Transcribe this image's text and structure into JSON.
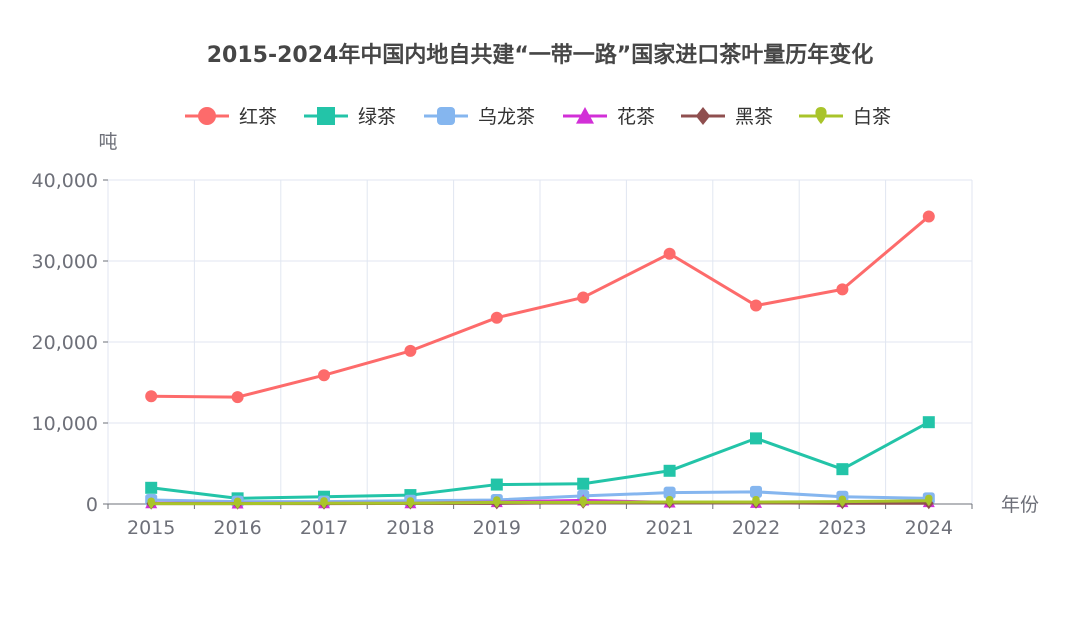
{
  "chart_data": {
    "type": "line",
    "title": "2015-2024年中国内地自共建“一带一路”国家进口茶叶量历年变化",
    "xlabel": "年份",
    "ylabel": "吨",
    "categories": [
      "2015",
      "2016",
      "2017",
      "2018",
      "2019",
      "2020",
      "2021",
      "2022",
      "2023",
      "2024"
    ],
    "ylim": [
      0,
      40000
    ],
    "yticks": [
      0,
      10000,
      20000,
      30000,
      40000
    ],
    "ytick_labels": [
      "0",
      "10,000",
      "20,000",
      "30,000",
      "40,000"
    ],
    "grid": true,
    "legend_position": "top",
    "series": [
      {
        "name": "红茶",
        "color": "#fd6b6b",
        "marker": "circle",
        "values": [
          13300,
          13200,
          15900,
          18900,
          23000,
          25500,
          30900,
          24500,
          26500,
          35500
        ]
      },
      {
        "name": "绿茶",
        "color": "#23c4a8",
        "marker": "square",
        "values": [
          2000,
          700,
          900,
          1100,
          2400,
          2500,
          4100,
          8100,
          4300,
          10100
        ]
      },
      {
        "name": "乌龙茶",
        "color": "#85b6ef",
        "marker": "roundRect",
        "values": [
          500,
          300,
          300,
          400,
          500,
          1000,
          1400,
          1500,
          900,
          700
        ]
      },
      {
        "name": "花茶",
        "color": "#d22fd7",
        "marker": "triangle",
        "values": [
          100,
          80,
          100,
          100,
          250,
          450,
          200,
          150,
          250,
          250
        ]
      },
      {
        "name": "黑茶",
        "color": "#8f4f4f",
        "marker": "diamond",
        "values": [
          50,
          50,
          50,
          60,
          80,
          150,
          150,
          150,
          100,
          100
        ]
      },
      {
        "name": "白茶",
        "color": "#a9c42a",
        "marker": "pin",
        "values": [
          50,
          50,
          100,
          100,
          200,
          200,
          250,
          250,
          300,
          400
        ]
      }
    ]
  }
}
